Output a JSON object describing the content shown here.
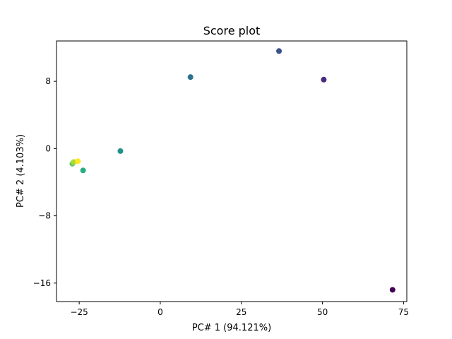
{
  "chart_data": {
    "type": "scatter",
    "title": "Score plot",
    "xlabel": "PC# 1 (94.121%)",
    "ylabel": "PC# 2 (4.103%)",
    "xlim": [
      -32,
      76
    ],
    "ylim": [
      -18.2,
      12.8
    ],
    "xticks": [
      -25,
      0,
      25,
      50,
      75
    ],
    "yticks": [
      8,
      0,
      -8,
      -16
    ],
    "grid": false,
    "colormap": "viridis",
    "points": [
      {
        "x": 71.6,
        "y": -16.8,
        "color": "#440154"
      },
      {
        "x": 50.4,
        "y": 8.2,
        "color": "#472d7b"
      },
      {
        "x": 36.6,
        "y": 11.6,
        "color": "#3b528b"
      },
      {
        "x": 9.3,
        "y": 8.5,
        "color": "#2c728e"
      },
      {
        "x": -12.3,
        "y": -0.3,
        "color": "#21918c"
      },
      {
        "x": -23.8,
        "y": -2.6,
        "color": "#28ae80"
      },
      {
        "x": -27.1,
        "y": -1.8,
        "color": "#5ec962"
      },
      {
        "x": -26.7,
        "y": -1.6,
        "color": "#addc30"
      },
      {
        "x": -25.4,
        "y": -1.5,
        "color": "#fde725"
      }
    ]
  }
}
